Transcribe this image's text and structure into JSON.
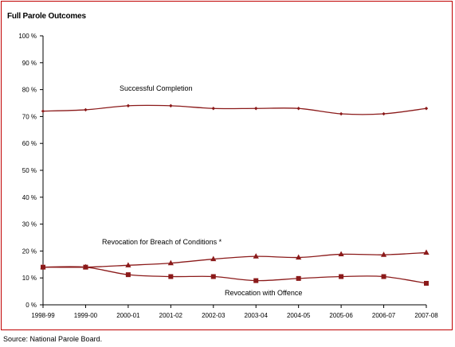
{
  "source": "Source:  National Parole Board.",
  "chart_data": {
    "type": "line",
    "title": "Full Parole Outcomes",
    "xlabel": "",
    "ylabel": "",
    "categories": [
      "1998-99",
      "1999-00",
      "2000-01",
      "2001-02",
      "2002-03",
      "2003-04",
      "2004-05",
      "2005-06",
      "2006-07",
      "2007-08"
    ],
    "yticks": [
      "0 %",
      "10 %",
      "20 %",
      "30 %",
      "40 %",
      "50 %",
      "60 %",
      "70 %",
      "80 %",
      "90 %",
      "100 %"
    ],
    "ylim": [
      0,
      100
    ],
    "grid": false,
    "legend": "none",
    "series": [
      {
        "name": "Successful Completion",
        "marker": "diamond",
        "color": "#8b1a1a",
        "values": [
          72,
          72.5,
          74,
          74,
          73,
          73,
          73,
          71,
          71,
          73
        ]
      },
      {
        "name": "Revocation for Breach of Conditions *",
        "marker": "triangle",
        "color": "#8b1a1a",
        "values": [
          14,
          14,
          14.7,
          15.5,
          17,
          18,
          17.6,
          18.8,
          18.6,
          19.4
        ]
      },
      {
        "name": "Revocation with Offence",
        "marker": "square",
        "color": "#8b1a1a",
        "values": [
          14,
          14,
          11.2,
          10.5,
          10.5,
          9,
          9.8,
          10.5,
          10.5,
          8
        ]
      }
    ]
  }
}
